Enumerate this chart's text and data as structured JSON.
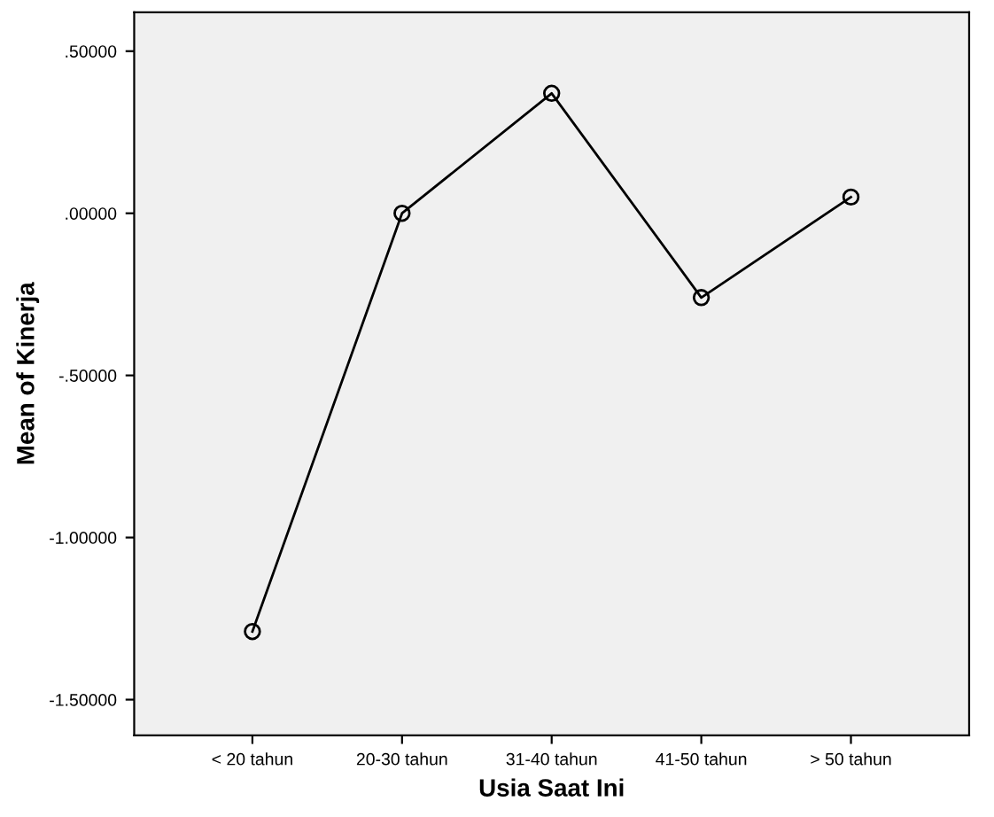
{
  "chart_data": {
    "type": "line",
    "xlabel": "Usia Saat Ini",
    "ylabel": "Mean of Kinerja",
    "categories": [
      "< 20 tahun",
      "20-30 tahun",
      "31-40 tahun",
      "41-50 tahun",
      "> 50 tahun"
    ],
    "series": [
      {
        "color": "#000000",
        "values": [
          -1.29,
          0.0,
          0.37,
          -0.26,
          0.05
        ]
      }
    ],
    "ylim": [
      -1.61,
      0.62
    ],
    "yticks": [
      {
        "value": 0.5,
        "label": ".50000"
      },
      {
        "value": 0,
        "label": ".00000"
      },
      {
        "value": -0.5,
        "label": "-.50000"
      },
      {
        "value": -1,
        "label": "-1.00000"
      },
      {
        "value": -1.5,
        "label": "-1.50000"
      }
    ],
    "marker": "circle",
    "line_style": "solid",
    "grid": false,
    "legend": false
  }
}
